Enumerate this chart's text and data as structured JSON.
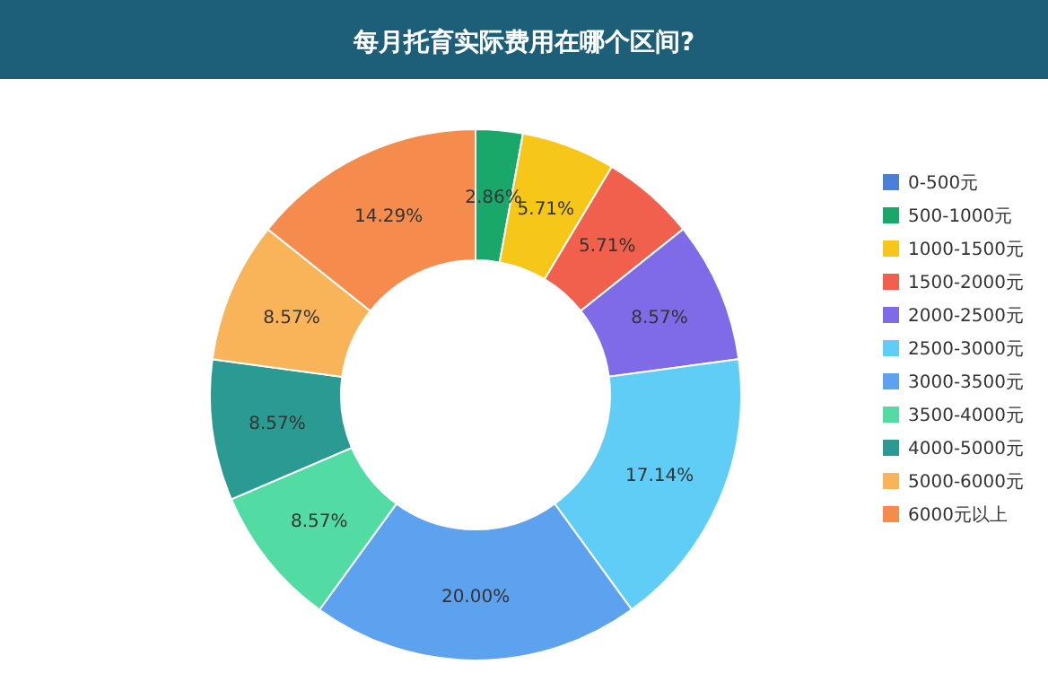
{
  "chart_data": {
    "type": "donut",
    "title": "每月托育实际费用在哪个区间?",
    "categories": [
      "0-500元",
      "500-1000元",
      "1000-1500元",
      "1500-2000元",
      "2000-2500元",
      "2500-3000元",
      "3000-3500元",
      "3500-4000元",
      "4000-5000元",
      "5000-6000元",
      "6000元以上"
    ],
    "values": [
      0,
      2.86,
      5.71,
      5.71,
      8.57,
      17.14,
      20.0,
      8.57,
      8.57,
      8.57,
      14.29
    ],
    "value_labels": [
      null,
      "2.86%",
      "5.71%",
      "5.71%",
      "8.57%",
      "17.14%",
      "20.00%",
      "8.57%",
      "8.57%",
      "8.57%",
      "14.29%"
    ],
    "colors": [
      "#4a7fd8",
      "#19a86a",
      "#f6c619",
      "#f0604c",
      "#7f6ae8",
      "#5fcdf6",
      "#5ca2ee",
      "#52dba2",
      "#2a9a92",
      "#f9b45a",
      "#f58c4e"
    ],
    "legend": "right"
  }
}
